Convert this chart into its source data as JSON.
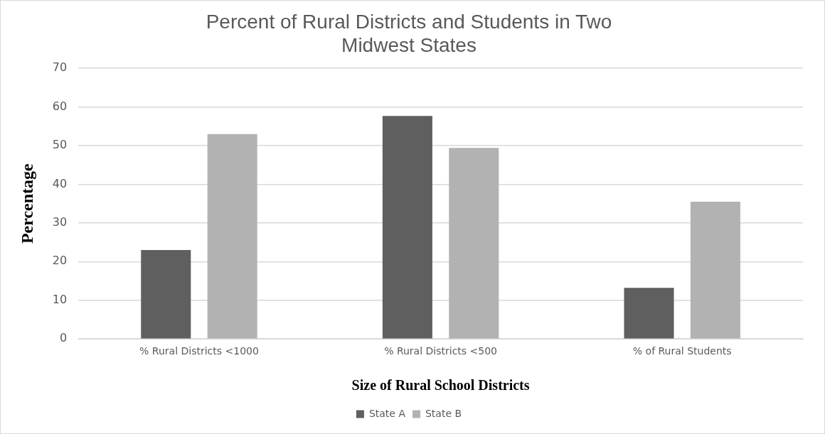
{
  "chart_data": {
    "type": "bar",
    "title": "Percent of Rural Districts and Students in Two Midwest States",
    "xlabel": "Size of Rural School Districts",
    "ylabel": "Percentage",
    "categories": [
      "% Rural Districts <1000",
      "% Rural Districts <500",
      "% of Rural Students"
    ],
    "series": [
      {
        "name": "State A",
        "color": "#5f5f5f",
        "values": [
          23,
          57.7,
          13.2
        ]
      },
      {
        "name": "State B",
        "color": "#b2b2b2",
        "values": [
          53,
          49.4,
          35.5
        ]
      }
    ],
    "ylim": [
      0,
      70
    ],
    "yticks": [
      0,
      10,
      20,
      30,
      40,
      50,
      60,
      70
    ],
    "grid": "y",
    "legend": "bottom"
  }
}
